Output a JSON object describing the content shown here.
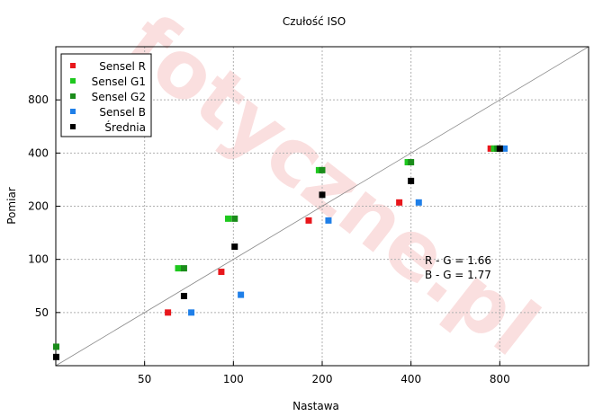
{
  "chart_data": {
    "type": "scatter",
    "title": "Czułość ISO",
    "xlabel": "Nastawa",
    "ylabel": "Pomiar",
    "x_scale": "log2",
    "y_scale": "log2",
    "xlim": [
      25,
      1600
    ],
    "ylim": [
      25,
      1600
    ],
    "x_ticks": [
      50,
      100,
      200,
      400,
      800
    ],
    "y_ticks": [
      50,
      100,
      200,
      400,
      800
    ],
    "x_tick_labels": [
      "50",
      "100",
      "200",
      "400",
      "800"
    ],
    "y_tick_labels": [
      "50",
      "100",
      "200",
      "400",
      "800"
    ],
    "grid": true,
    "legend_position": "top-left",
    "reference_line": "y = x",
    "series": [
      {
        "name": "Sensel R",
        "color": "#e8171c",
        "points": [
          [
            60,
            50
          ],
          [
            91,
            85
          ],
          [
            180,
            166
          ],
          [
            365,
            210
          ],
          [
            745,
            424
          ]
        ]
      },
      {
        "name": "Sensel G1",
        "color": "#1ec81e",
        "points": [
          [
            65,
            89
          ],
          [
            96,
            170
          ],
          [
            195,
            320
          ],
          [
            390,
            355
          ],
          [
            765,
            424
          ]
        ]
      },
      {
        "name": "Sensel G2",
        "color": "#1a8c1a",
        "points": [
          [
            25,
            32
          ],
          [
            68,
            89
          ],
          [
            101,
            170
          ],
          [
            200,
            320
          ],
          [
            400,
            355
          ],
          [
            785,
            424
          ]
        ]
      },
      {
        "name": "Sensel B",
        "color": "#1f7fe8",
        "points": [
          [
            72,
            50
          ],
          [
            106,
            63
          ],
          [
            210,
            166
          ],
          [
            425,
            210
          ],
          [
            830,
            424
          ]
        ]
      },
      {
        "name": "Średnia",
        "color": "#000000",
        "points": [
          [
            25,
            28
          ],
          [
            68,
            62
          ],
          [
            101,
            118
          ],
          [
            200,
            232
          ],
          [
            400,
            278
          ],
          [
            800,
            424
          ]
        ]
      }
    ],
    "annotations": [
      "R - G = 1.66",
      "B - G = 1.77"
    ]
  },
  "watermark": "fotyczne.pl"
}
